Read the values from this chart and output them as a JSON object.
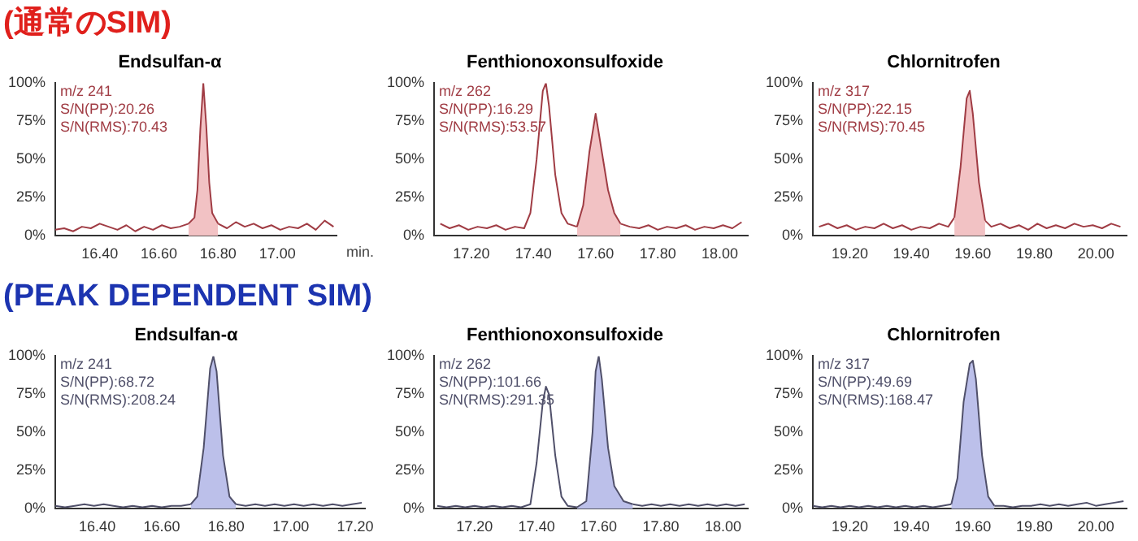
{
  "chart_data": [
    {
      "type": "other",
      "title": "(通常のSIM)"
    },
    {
      "type": "line",
      "title": "Endsulfan-α",
      "xlabel": "min.",
      "legend": false,
      "grid": false,
      "annotations": [
        "m/z 241",
        "S/N(PP):20.26",
        "S/N(RMS):70.43"
      ],
      "xlim": [
        16.25,
        17.2
      ],
      "xticks": [
        {
          "value": 16.4,
          "label": "16.40"
        },
        {
          "value": 16.6,
          "label": "16.60"
        },
        {
          "value": 16.8,
          "label": "16.80"
        },
        {
          "value": 17.0,
          "label": "17.00"
        }
      ],
      "ylim": [
        0,
        100
      ],
      "yticks": [
        {
          "value": 0,
          "label": "0%"
        },
        {
          "value": 25,
          "label": "25%"
        },
        {
          "value": 50,
          "label": "50%"
        },
        {
          "value": 75,
          "label": "75%"
        },
        {
          "value": 100,
          "label": "100%"
        }
      ],
      "series": [
        {
          "type": "area",
          "color": "#f2c2c4",
          "x": [
            16.7,
            16.72,
            16.73,
            16.74,
            16.75,
            16.76,
            16.77,
            16.78,
            16.8
          ],
          "values": [
            8,
            12,
            30,
            70,
            100,
            72,
            35,
            15,
            8
          ]
        },
        {
          "type": "line",
          "color": "#a03c44",
          "x": [
            16.25,
            16.28,
            16.31,
            16.34,
            16.37,
            16.4,
            16.43,
            16.46,
            16.49,
            16.52,
            16.55,
            16.58,
            16.61,
            16.64,
            16.67,
            16.7,
            16.72,
            16.73,
            16.74,
            16.75,
            16.76,
            16.77,
            16.78,
            16.8,
            16.83,
            16.86,
            16.89,
            16.92,
            16.95,
            16.98,
            17.01,
            17.04,
            17.07,
            17.1,
            17.13,
            17.16,
            17.19
          ],
          "values": [
            4,
            5,
            3,
            6,
            5,
            8,
            6,
            4,
            7,
            3,
            6,
            4,
            7,
            5,
            6,
            8,
            null,
            null,
            null,
            null,
            null,
            null,
            null,
            8,
            5,
            9,
            6,
            8,
            5,
            7,
            4,
            6,
            5,
            8,
            4,
            10,
            6
          ]
        }
      ]
    },
    {
      "type": "line",
      "title": "Fenthionoxonsulfoxide",
      "legend": false,
      "grid": false,
      "annotations": [
        "m/z 262",
        "S/N(PP):16.29",
        "S/N(RMS):53.57"
      ],
      "xlim": [
        17.08,
        18.09
      ],
      "xticks": [
        {
          "value": 17.2,
          "label": "17.20"
        },
        {
          "value": 17.4,
          "label": "17.40"
        },
        {
          "value": 17.6,
          "label": "17.60"
        },
        {
          "value": 17.8,
          "label": "17.80"
        },
        {
          "value": 18.0,
          "label": "18.00"
        }
      ],
      "ylim": [
        0,
        100
      ],
      "yticks": [
        {
          "value": 0,
          "label": "0%"
        },
        {
          "value": 25,
          "label": "25%"
        },
        {
          "value": 50,
          "label": "50%"
        },
        {
          "value": 75,
          "label": "75%"
        },
        {
          "value": 100,
          "label": "100%"
        }
      ],
      "series": [
        {
          "type": "area",
          "color": "#f2c2c4",
          "x": [
            17.54,
            17.56,
            17.58,
            17.6,
            17.62,
            17.64,
            17.66,
            17.68
          ],
          "values": [
            6,
            20,
            55,
            80,
            55,
            30,
            15,
            8
          ]
        },
        {
          "type": "line",
          "color": "#a03c44",
          "x": [
            17.1,
            17.13,
            17.16,
            17.19,
            17.22,
            17.25,
            17.28,
            17.31,
            17.34,
            17.37,
            17.39,
            17.41,
            17.43,
            17.44,
            17.45,
            17.47,
            17.49,
            17.51,
            17.54,
            17.56,
            17.58,
            17.6,
            17.62,
            17.64,
            17.66,
            17.68,
            17.71,
            17.74,
            17.77,
            17.8,
            17.83,
            17.86,
            17.89,
            17.92,
            17.95,
            17.98,
            18.01,
            18.04,
            18.07
          ],
          "values": [
            8,
            5,
            7,
            4,
            6,
            5,
            7,
            4,
            6,
            5,
            15,
            50,
            95,
            100,
            85,
            40,
            15,
            8,
            6,
            null,
            null,
            null,
            null,
            null,
            null,
            8,
            6,
            5,
            7,
            4,
            6,
            5,
            7,
            4,
            6,
            5,
            7,
            5,
            9
          ]
        }
      ]
    },
    {
      "type": "line",
      "title": "Chlornitrofen",
      "legend": false,
      "grid": false,
      "annotations": [
        "m/z 317",
        "S/N(PP):22.15",
        "S/N(RMS):70.45"
      ],
      "xlim": [
        19.08,
        20.1
      ],
      "xticks": [
        {
          "value": 19.2,
          "label": "19.20"
        },
        {
          "value": 19.4,
          "label": "19.40"
        },
        {
          "value": 19.6,
          "label": "19.60"
        },
        {
          "value": 19.8,
          "label": "19.80"
        },
        {
          "value": 20.0,
          "label": "20.00"
        }
      ],
      "ylim": [
        0,
        100
      ],
      "yticks": [
        {
          "value": 0,
          "label": "0%"
        },
        {
          "value": 25,
          "label": "25%"
        },
        {
          "value": 50,
          "label": "50%"
        },
        {
          "value": 75,
          "label": "75%"
        },
        {
          "value": 100,
          "label": "100%"
        }
      ],
      "series": [
        {
          "type": "area",
          "color": "#f2c2c4",
          "x": [
            19.54,
            19.56,
            19.58,
            19.59,
            19.6,
            19.62,
            19.64
          ],
          "values": [
            12,
            45,
            90,
            95,
            80,
            35,
            10
          ]
        },
        {
          "type": "line",
          "color": "#a03c44",
          "x": [
            19.1,
            19.13,
            19.16,
            19.19,
            19.22,
            19.25,
            19.28,
            19.31,
            19.34,
            19.37,
            19.4,
            19.43,
            19.46,
            19.49,
            19.52,
            19.54,
            19.56,
            19.58,
            19.59,
            19.6,
            19.62,
            19.64,
            19.66,
            19.69,
            19.72,
            19.75,
            19.78,
            19.81,
            19.84,
            19.87,
            19.9,
            19.93,
            19.96,
            19.99,
            20.02,
            20.05,
            20.08
          ],
          "values": [
            6,
            8,
            5,
            7,
            4,
            6,
            5,
            8,
            5,
            7,
            4,
            6,
            5,
            8,
            6,
            12,
            null,
            null,
            null,
            null,
            null,
            10,
            6,
            8,
            5,
            7,
            4,
            8,
            5,
            7,
            5,
            8,
            6,
            7,
            5,
            8,
            6
          ]
        }
      ]
    },
    {
      "type": "other",
      "title": "(PEAK DEPENDENT SIM)"
    },
    {
      "type": "line",
      "title": "Endsulfan-α",
      "legend": false,
      "grid": false,
      "annotations": [
        "m/z 241",
        "S/N(PP):68.72",
        "S/N(RMS):208.24"
      ],
      "xlim": [
        16.27,
        17.23
      ],
      "xticks": [
        {
          "value": 16.4,
          "label": "16.40"
        },
        {
          "value": 16.6,
          "label": "16.60"
        },
        {
          "value": 16.8,
          "label": "16.80"
        },
        {
          "value": 17.0,
          "label": "17.00"
        },
        {
          "value": 17.2,
          "label": "17.20"
        }
      ],
      "ylim": [
        0,
        100
      ],
      "yticks": [
        {
          "value": 0,
          "label": "0%"
        },
        {
          "value": 25,
          "label": "25%"
        },
        {
          "value": 50,
          "label": "50%"
        },
        {
          "value": 75,
          "label": "75%"
        },
        {
          "value": 100,
          "label": "100%"
        }
      ],
      "series": [
        {
          "type": "area",
          "color": "#bcc0ea",
          "x": [
            16.69,
            16.71,
            16.73,
            16.75,
            16.76,
            16.77,
            16.79,
            16.81,
            16.83
          ],
          "values": [
            3,
            8,
            40,
            92,
            100,
            90,
            35,
            8,
            3
          ]
        },
        {
          "type": "line",
          "color": "#50506a",
          "x": [
            16.27,
            16.3,
            16.33,
            16.36,
            16.39,
            16.42,
            16.45,
            16.48,
            16.51,
            16.54,
            16.57,
            16.6,
            16.63,
            16.66,
            16.69,
            16.71,
            16.73,
            16.75,
            16.76,
            16.77,
            16.79,
            16.81,
            16.83,
            16.86,
            16.89,
            16.92,
            16.95,
            16.98,
            17.01,
            17.04,
            17.07,
            17.1,
            17.13,
            17.16,
            17.19,
            17.22
          ],
          "values": [
            2,
            1,
            2,
            3,
            2,
            3,
            2,
            1,
            2,
            1,
            2,
            1,
            2,
            2,
            3,
            null,
            null,
            null,
            null,
            null,
            null,
            null,
            3,
            2,
            3,
            2,
            3,
            2,
            3,
            2,
            3,
            2,
            3,
            2,
            3,
            4
          ]
        }
      ]
    },
    {
      "type": "line",
      "title": "Fenthionoxonsulfoxide",
      "legend": false,
      "grid": false,
      "annotations": [
        "m/z 262",
        "S/N(PP):101.66",
        "S/N(RMS):291.35"
      ],
      "xlim": [
        17.07,
        18.08
      ],
      "xticks": [
        {
          "value": 17.2,
          "label": "17.20"
        },
        {
          "value": 17.4,
          "label": "17.40"
        },
        {
          "value": 17.6,
          "label": "17.60"
        },
        {
          "value": 17.8,
          "label": "17.80"
        },
        {
          "value": 18.0,
          "label": "18.00"
        }
      ],
      "ylim": [
        0,
        100
      ],
      "yticks": [
        {
          "value": 0,
          "label": "0%"
        },
        {
          "value": 25,
          "label": "25%"
        },
        {
          "value": 50,
          "label": "50%"
        },
        {
          "value": 75,
          "label": "75%"
        },
        {
          "value": 100,
          "label": "100%"
        }
      ],
      "series": [
        {
          "type": "area",
          "color": "#bcc0ea",
          "x": [
            17.53,
            17.56,
            17.58,
            17.59,
            17.6,
            17.61,
            17.63,
            17.65,
            17.68,
            17.71
          ],
          "values": [
            1,
            5,
            50,
            90,
            100,
            85,
            40,
            15,
            5,
            3
          ]
        },
        {
          "type": "line",
          "color": "#50506a",
          "x": [
            17.08,
            17.11,
            17.14,
            17.17,
            17.2,
            17.23,
            17.26,
            17.29,
            17.32,
            17.35,
            17.38,
            17.4,
            17.42,
            17.43,
            17.44,
            17.46,
            17.48,
            17.5,
            17.53,
            17.56,
            17.58,
            17.59,
            17.6,
            17.61,
            17.63,
            17.65,
            17.68,
            17.71,
            17.74,
            17.77,
            17.8,
            17.83,
            17.86,
            17.89,
            17.92,
            17.95,
            17.98,
            18.01,
            18.04,
            18.07
          ],
          "values": [
            2,
            1,
            2,
            1,
            2,
            1,
            2,
            1,
            2,
            1,
            3,
            30,
            70,
            80,
            75,
            35,
            8,
            2,
            1,
            null,
            null,
            null,
            null,
            null,
            null,
            null,
            null,
            3,
            2,
            3,
            2,
            3,
            2,
            3,
            2,
            3,
            2,
            3,
            2,
            3
          ]
        }
      ]
    },
    {
      "type": "line",
      "title": "Chlornitrofen",
      "legend": false,
      "grid": false,
      "annotations": [
        "m/z 317",
        "S/N(PP):49.69",
        "S/N(RMS):168.47"
      ],
      "xlim": [
        19.08,
        20.1
      ],
      "xticks": [
        {
          "value": 19.2,
          "label": "19.20"
        },
        {
          "value": 19.4,
          "label": "19.40"
        },
        {
          "value": 19.6,
          "label": "19.60"
        },
        {
          "value": 19.8,
          "label": "19.80"
        },
        {
          "value": 20.0,
          "label": "20.00"
        }
      ],
      "ylim": [
        0,
        100
      ],
      "yticks": [
        {
          "value": 0,
          "label": "0%"
        },
        {
          "value": 25,
          "label": "25%"
        },
        {
          "value": 50,
          "label": "50%"
        },
        {
          "value": 75,
          "label": "75%"
        },
        {
          "value": 100,
          "label": "100%"
        }
      ],
      "series": [
        {
          "type": "area",
          "color": "#bcc0ea",
          "x": [
            19.53,
            19.55,
            19.57,
            19.59,
            19.6,
            19.61,
            19.63,
            19.65,
            19.67
          ],
          "values": [
            3,
            20,
            70,
            95,
            97,
            85,
            35,
            8,
            2
          ]
        },
        {
          "type": "line",
          "color": "#50506a",
          "x": [
            19.08,
            19.11,
            19.14,
            19.17,
            19.2,
            19.23,
            19.26,
            19.29,
            19.32,
            19.35,
            19.38,
            19.41,
            19.44,
            19.47,
            19.5,
            19.53,
            19.55,
            19.57,
            19.59,
            19.6,
            19.61,
            19.63,
            19.65,
            19.67,
            19.7,
            19.73,
            19.76,
            19.79,
            19.82,
            19.85,
            19.88,
            19.91,
            19.94,
            19.97,
            20.0,
            20.03,
            20.06,
            20.09
          ],
          "values": [
            2,
            1,
            2,
            1,
            2,
            1,
            2,
            1,
            2,
            1,
            2,
            1,
            2,
            1,
            2,
            3,
            null,
            null,
            null,
            null,
            null,
            null,
            null,
            2,
            2,
            1,
            2,
            2,
            3,
            2,
            3,
            2,
            3,
            4,
            2,
            3,
            4,
            5
          ]
        }
      ]
    }
  ]
}
